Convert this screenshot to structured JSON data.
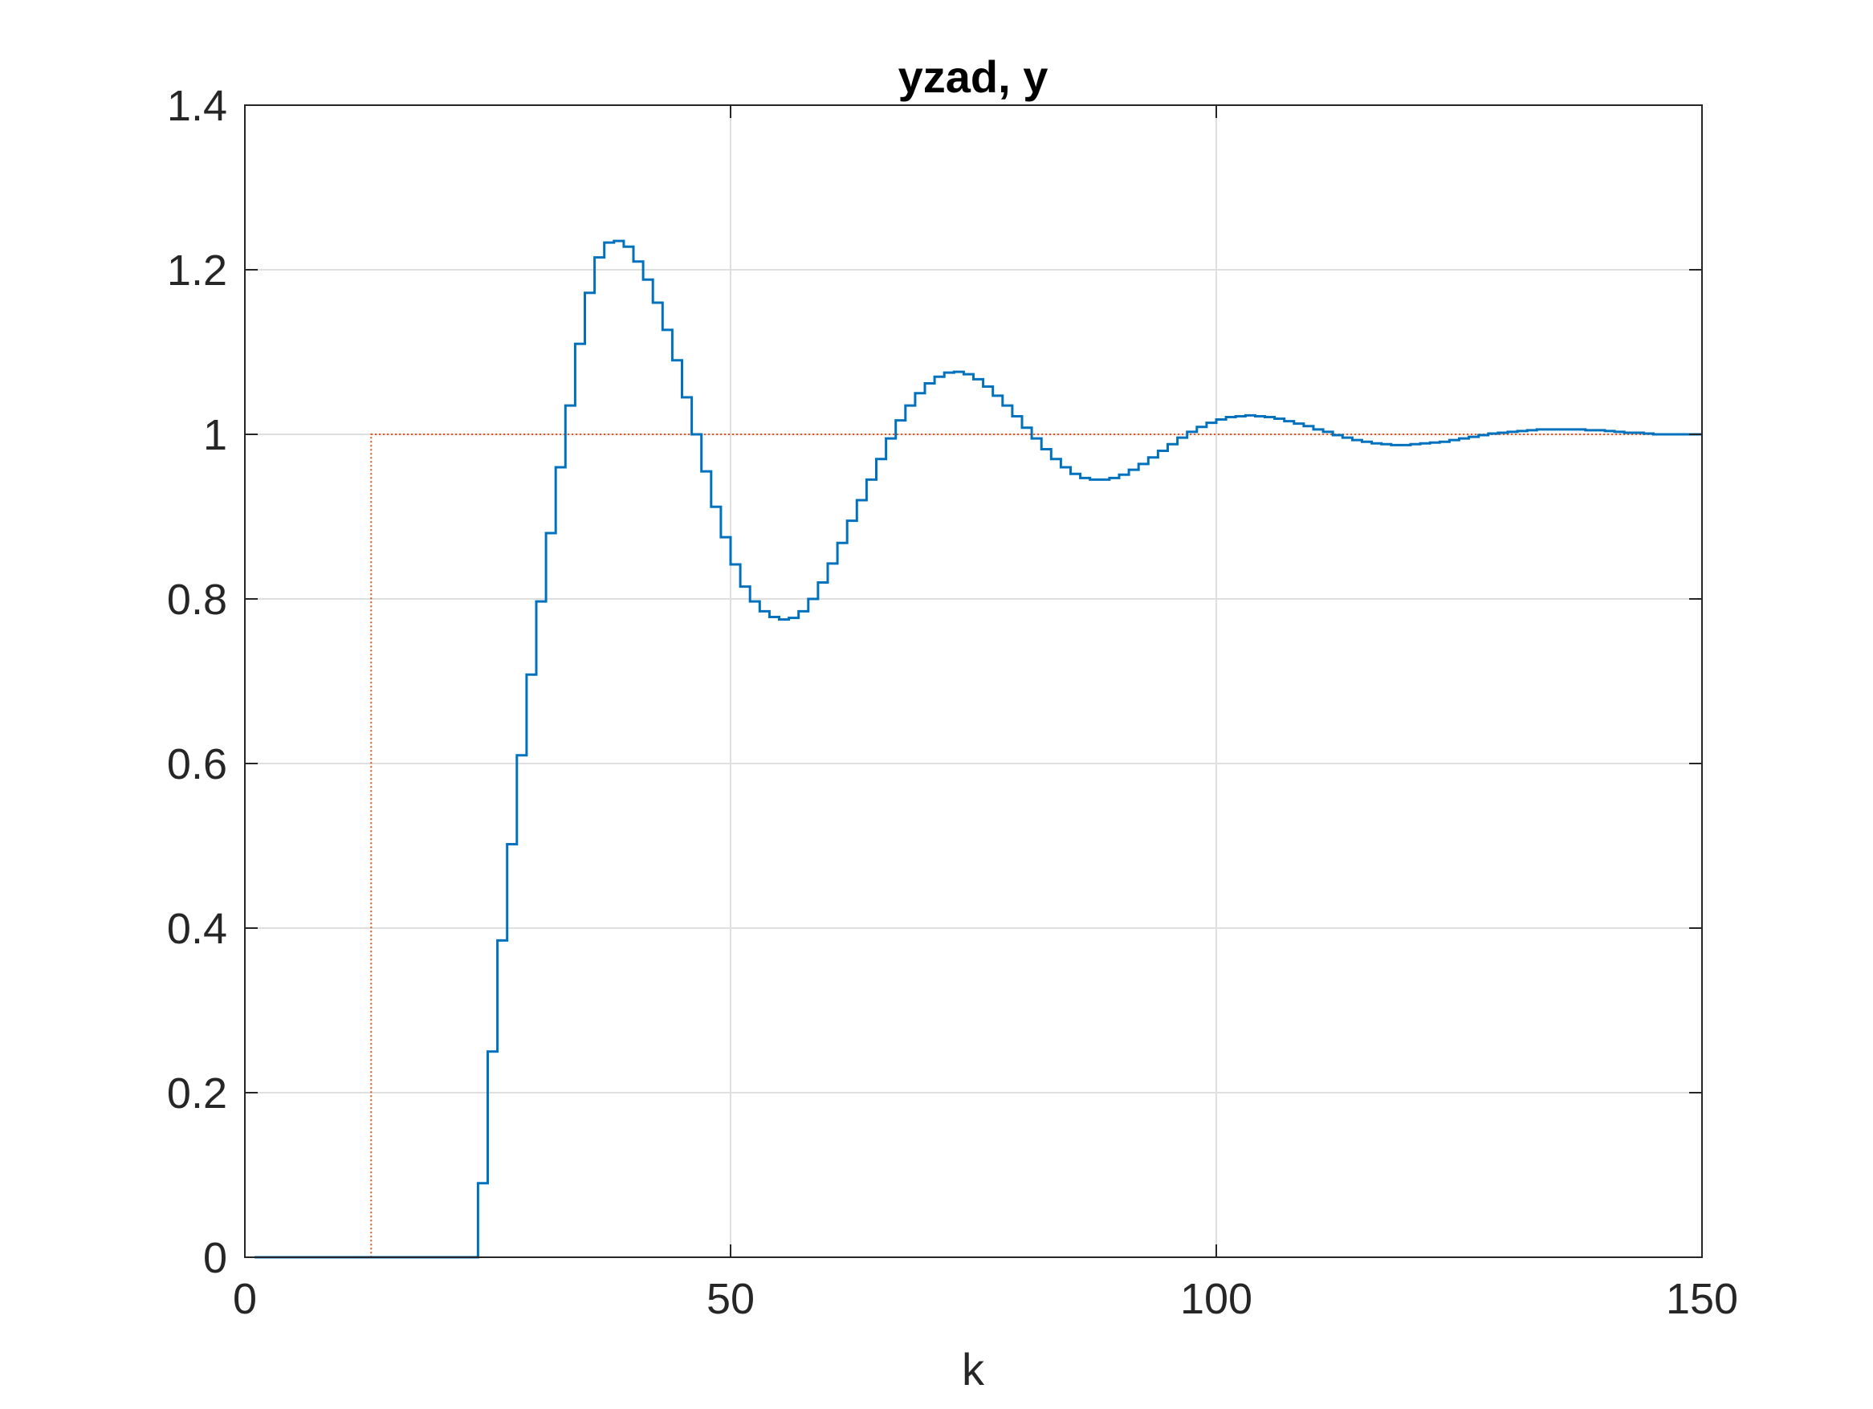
{
  "chart_data": {
    "type": "line",
    "subtype": "stairs",
    "title": "yzad, y",
    "xlabel": "k",
    "ylabel": "",
    "xlim": [
      0,
      150
    ],
    "ylim": [
      0,
      1.4
    ],
    "xticks": [
      "0",
      "50",
      "100",
      "150"
    ],
    "yticks": [
      "0",
      "0.2",
      "0.4",
      "0.6",
      "0.8",
      "1",
      "1.2",
      "1.4"
    ],
    "grid": true,
    "legend": "none",
    "series": [
      {
        "color": "#D95319",
        "line_style": "dotted",
        "x": [
          1,
          13,
          150
        ],
        "y": [
          0,
          1,
          1
        ]
      },
      {
        "color": "#0072BD",
        "line_style": "solid",
        "x": [
          1,
          2,
          3,
          4,
          5,
          6,
          7,
          8,
          9,
          10,
          11,
          12,
          13,
          14,
          15,
          16,
          17,
          18,
          19,
          20,
          21,
          22,
          23,
          24,
          25,
          26,
          27,
          28,
          29,
          30,
          31,
          32,
          33,
          34,
          35,
          36,
          37,
          38,
          39,
          40,
          41,
          42,
          43,
          44,
          45,
          46,
          47,
          48,
          49,
          50,
          51,
          52,
          53,
          54,
          55,
          56,
          57,
          58,
          59,
          60,
          61,
          62,
          63,
          64,
          65,
          66,
          67,
          68,
          69,
          70,
          71,
          72,
          73,
          74,
          75,
          76,
          77,
          78,
          79,
          80,
          81,
          82,
          83,
          84,
          85,
          86,
          87,
          88,
          89,
          90,
          91,
          92,
          93,
          94,
          95,
          96,
          97,
          98,
          99,
          100,
          101,
          102,
          103,
          104,
          105,
          106,
          107,
          108,
          109,
          110,
          111,
          112,
          113,
          114,
          115,
          116,
          117,
          118,
          119,
          120,
          121,
          122,
          123,
          124,
          125,
          126,
          127,
          128,
          129,
          130,
          131,
          132,
          133,
          134,
          135,
          136,
          137,
          138,
          139,
          140,
          141,
          142,
          143,
          144,
          145,
          146,
          147,
          148,
          149,
          150
        ],
        "y": [
          0,
          0,
          0,
          0,
          0,
          0,
          0,
          0,
          0,
          0,
          0,
          0,
          0,
          0,
          0,
          0,
          0,
          0,
          0,
          0,
          0,
          0,
          0,
          0.09,
          0.25,
          0.385,
          0.502,
          0.61,
          0.708,
          0.797,
          0.88,
          0.96,
          1.035,
          1.11,
          1.172,
          1.215,
          1.233,
          1.235,
          1.228,
          1.21,
          1.188,
          1.16,
          1.127,
          1.09,
          1.045,
          1.0,
          0.955,
          0.912,
          0.875,
          0.842,
          0.815,
          0.797,
          0.785,
          0.778,
          0.775,
          0.777,
          0.785,
          0.8,
          0.82,
          0.843,
          0.868,
          0.895,
          0.92,
          0.945,
          0.97,
          0.995,
          1.017,
          1.035,
          1.05,
          1.062,
          1.07,
          1.075,
          1.076,
          1.073,
          1.067,
          1.058,
          1.047,
          1.035,
          1.022,
          1.008,
          0.995,
          0.982,
          0.97,
          0.96,
          0.952,
          0.947,
          0.945,
          0.945,
          0.947,
          0.951,
          0.957,
          0.964,
          0.972,
          0.98,
          0.988,
          0.996,
          1.003,
          1.009,
          1.014,
          1.018,
          1.021,
          1.022,
          1.023,
          1.022,
          1.021,
          1.019,
          1.016,
          1.013,
          1.01,
          1.006,
          1.003,
          0.999,
          0.996,
          0.993,
          0.991,
          0.989,
          0.988,
          0.987,
          0.987,
          0.988,
          0.989,
          0.99,
          0.991,
          0.993,
          0.995,
          0.997,
          0.999,
          1.001,
          1.002,
          1.003,
          1.004,
          1.005,
          1.006,
          1.006,
          1.006,
          1.006,
          1.006,
          1.005,
          1.005,
          1.004,
          1.003,
          1.002,
          1.002,
          1.001,
          1.0,
          1.0,
          1.0,
          1.0,
          1.0,
          1.0
        ]
      }
    ]
  }
}
